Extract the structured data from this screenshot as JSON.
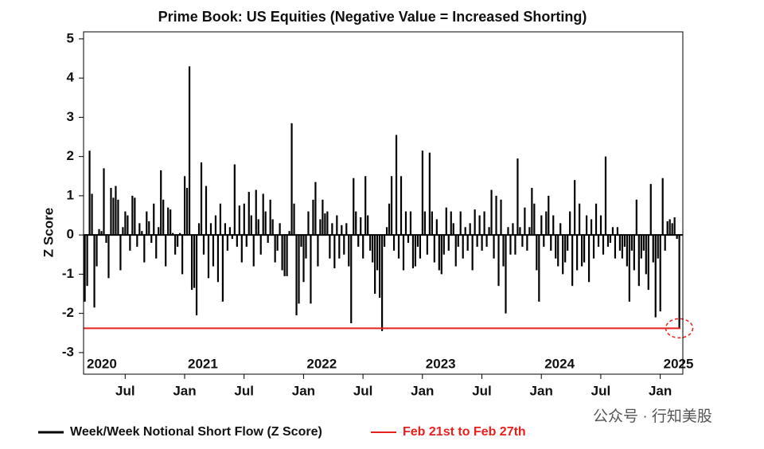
{
  "chart_data": {
    "type": "bar",
    "title": "Prime Book: US Equities (Negative Value = Increased Shorting)",
    "y_label": "Z Score",
    "x": [
      2020.16,
      2020.18,
      2020.2,
      2020.22,
      2020.24,
      2020.26,
      2020.28,
      2020.3,
      2020.32,
      2020.34,
      2020.36,
      2020.38,
      2020.4,
      2020.42,
      2020.44,
      2020.46,
      2020.48,
      2020.5,
      2020.52,
      2020.54,
      2020.56,
      2020.58,
      2020.6,
      2020.62,
      2020.64,
      2020.66,
      2020.68,
      2020.7,
      2020.72,
      2020.74,
      2020.76,
      2020.78,
      2020.8,
      2020.82,
      2020.84,
      2020.86,
      2020.88,
      2020.9,
      2020.92,
      2020.94,
      2020.96,
      2020.98,
      2021.0,
      2021.02,
      2021.04,
      2021.06,
      2021.08,
      2021.1,
      2021.12,
      2021.14,
      2021.16,
      2021.18,
      2021.2,
      2021.22,
      2021.24,
      2021.26,
      2021.28,
      2021.3,
      2021.32,
      2021.34,
      2021.36,
      2021.38,
      2021.4,
      2021.42,
      2021.44,
      2021.46,
      2021.48,
      2021.5,
      2021.52,
      2021.54,
      2021.56,
      2021.58,
      2021.6,
      2021.62,
      2021.64,
      2021.66,
      2021.68,
      2021.7,
      2021.72,
      2021.74,
      2021.76,
      2021.78,
      2021.8,
      2021.82,
      2021.84,
      2021.86,
      2021.88,
      2021.9,
      2021.92,
      2021.94,
      2021.96,
      2021.98,
      2022.0,
      2022.02,
      2022.04,
      2022.06,
      2022.08,
      2022.1,
      2022.12,
      2022.14,
      2022.16,
      2022.18,
      2022.2,
      2022.22,
      2022.24,
      2022.26,
      2022.28,
      2022.3,
      2022.32,
      2022.34,
      2022.36,
      2022.38,
      2022.4,
      2022.42,
      2022.44,
      2022.46,
      2022.48,
      2022.5,
      2022.52,
      2022.54,
      2022.56,
      2022.58,
      2022.6,
      2022.62,
      2022.64,
      2022.66,
      2022.68,
      2022.7,
      2022.72,
      2022.74,
      2022.76,
      2022.78,
      2022.8,
      2022.82,
      2022.84,
      2022.86,
      2022.88,
      2022.9,
      2022.92,
      2022.94,
      2022.96,
      2022.98,
      2023.0,
      2023.02,
      2023.04,
      2023.06,
      2023.08,
      2023.1,
      2023.12,
      2023.14,
      2023.16,
      2023.18,
      2023.2,
      2023.22,
      2023.24,
      2023.26,
      2023.28,
      2023.3,
      2023.32,
      2023.34,
      2023.36,
      2023.38,
      2023.4,
      2023.42,
      2023.44,
      2023.46,
      2023.48,
      2023.5,
      2023.52,
      2023.54,
      2023.56,
      2023.58,
      2023.6,
      2023.62,
      2023.64,
      2023.66,
      2023.68,
      2023.7,
      2023.72,
      2023.74,
      2023.76,
      2023.78,
      2023.8,
      2023.82,
      2023.84,
      2023.86,
      2023.88,
      2023.9,
      2023.92,
      2023.94,
      2023.96,
      2023.98,
      2024.0,
      2024.02,
      2024.04,
      2024.06,
      2024.08,
      2024.1,
      2024.12,
      2024.14,
      2024.16,
      2024.18,
      2024.2,
      2024.22,
      2024.24,
      2024.26,
      2024.28,
      2024.3,
      2024.32,
      2024.34,
      2024.36,
      2024.38,
      2024.4,
      2024.42,
      2024.44,
      2024.46,
      2024.48,
      2024.5,
      2024.52,
      2024.54,
      2024.56,
      2024.58,
      2024.6,
      2024.62,
      2024.64,
      2024.66,
      2024.68,
      2024.7,
      2024.72,
      2024.74,
      2024.76,
      2024.78,
      2024.8,
      2024.82,
      2024.84,
      2024.86,
      2024.88,
      2024.9,
      2024.92,
      2024.94,
      2024.96,
      2024.98,
      2025.0,
      2025.02,
      2025.04,
      2025.06,
      2025.08,
      2025.1,
      2025.12,
      2025.14,
      2025.16
    ],
    "series": [
      {
        "name": "Week/Week Notional Short Flow (Z Score)",
        "color": "#000000",
        "values": [
          -1.7,
          -1.3,
          2.15,
          1.05,
          -1.85,
          -0.8,
          0.15,
          0.1,
          1.7,
          -0.2,
          -1.1,
          1.2,
          0.95,
          1.25,
          0.9,
          -0.9,
          0.2,
          0.6,
          0.5,
          -0.4,
          1.0,
          0.95,
          -0.3,
          0.3,
          0.1,
          -0.7,
          0.6,
          0.35,
          -0.2,
          0.8,
          -0.6,
          0.2,
          1.65,
          0.9,
          -0.8,
          0.7,
          0.65,
          0.05,
          -0.5,
          -0.3,
          0.05,
          -1.0,
          1.5,
          1.2,
          4.3,
          -1.4,
          -1.35,
          -2.05,
          0.3,
          1.85,
          -0.5,
          1.25,
          -1.1,
          0.3,
          -0.8,
          0.5,
          -1.2,
          0.8,
          -1.7,
          0.3,
          -0.4,
          0.2,
          -0.1,
          1.8,
          -0.3,
          0.75,
          -0.7,
          0.8,
          -0.3,
          1.1,
          0.5,
          -0.8,
          1.15,
          0.4,
          -0.5,
          1.05,
          0.6,
          -0.2,
          0.9,
          0.4,
          -0.7,
          -0.4,
          0.3,
          -0.9,
          -1.05,
          -1.05,
          0.1,
          2.85,
          0.8,
          -2.05,
          -1.75,
          -0.3,
          -1.2,
          -0.6,
          0.6,
          -1.75,
          0.9,
          1.35,
          -0.8,
          0.4,
          0.9,
          0.55,
          0.6,
          -0.6,
          0.3,
          -0.85,
          0.5,
          -0.6,
          0.25,
          -0.5,
          0.3,
          -0.8,
          -2.25,
          1.45,
          0.6,
          -0.3,
          0.45,
          -0.6,
          1.5,
          0.5,
          -0.4,
          -0.7,
          -1.5,
          -0.9,
          -1.6,
          -2.45,
          -0.3,
          0.2,
          0.8,
          1.5,
          -0.4,
          2.55,
          -0.6,
          1.5,
          -0.9,
          0.6,
          -0.2,
          0.6,
          -0.85,
          -0.8,
          -0.3,
          -0.6,
          2.15,
          0.6,
          -0.5,
          2.1,
          0.6,
          -0.7,
          0.4,
          -0.9,
          -1.0,
          -0.5,
          0.7,
          -0.4,
          0.6,
          0.3,
          -0.8,
          -0.3,
          0.6,
          -0.6,
          0.2,
          -0.4,
          0.3,
          -0.9,
          0.65,
          -0.3,
          0.5,
          -0.4,
          0.6,
          -0.3,
          0.2,
          1.15,
          -0.6,
          1.0,
          -1.3,
          0.9,
          -0.8,
          -2.0,
          0.2,
          -0.5,
          0.3,
          -0.5,
          1.95,
          0.2,
          -0.3,
          0.7,
          -0.4,
          0.2,
          1.2,
          0.8,
          -0.9,
          -1.7,
          0.5,
          -0.3,
          0.6,
          1.0,
          -0.4,
          0.5,
          -0.6,
          -0.8,
          0.3,
          -1.0,
          -0.7,
          -0.4,
          0.6,
          -1.3,
          1.4,
          -0.9,
          0.8,
          -0.8,
          -0.7,
          0.5,
          -1.2,
          0.4,
          -0.6,
          0.8,
          -0.3,
          0.5,
          -0.5,
          2.0,
          -0.3,
          -0.2,
          0.2,
          -0.6,
          0.2,
          -0.4,
          -0.6,
          -0.3,
          -0.8,
          -1.7,
          -0.4,
          -0.9,
          0.9,
          -1.3,
          -0.6,
          -0.4,
          -1.0,
          -1.4,
          1.3,
          -0.7,
          -2.1,
          -0.6,
          -1.95,
          1.45,
          -0.4,
          0.35,
          0.4,
          0.3,
          0.45,
          -0.1,
          -2.38
        ]
      }
    ],
    "reference_line": {
      "name": "Feb 21st to Feb 27th",
      "value": -2.38,
      "color": "#e8201c"
    },
    "xlim": [
      2020.15,
      2025.19
    ],
    "xticks": [
      {
        "value": 2020.5,
        "label": "Jul"
      },
      {
        "value": 2021,
        "label": "Jan"
      },
      {
        "value": 2021.5,
        "label": "Jul"
      },
      {
        "value": 2022,
        "label": "Jan"
      },
      {
        "value": 2022.5,
        "label": "Jul"
      },
      {
        "value": 2023,
        "label": "Jan"
      },
      {
        "value": 2023.5,
        "label": "Jul"
      },
      {
        "value": 2024,
        "label": "Jan"
      },
      {
        "value": 2024.5,
        "label": "Jul"
      },
      {
        "value": 2025,
        "label": "Jan"
      }
    ],
    "year_labels": [
      2020,
      2021,
      2022,
      2023,
      2024,
      2025
    ],
    "ylim": [
      -3.55,
      5.18
    ],
    "yticks": [
      -3,
      -2,
      -1,
      0,
      1,
      2,
      3,
      4,
      5
    ],
    "watermark": "公众号 · 行知美股"
  }
}
